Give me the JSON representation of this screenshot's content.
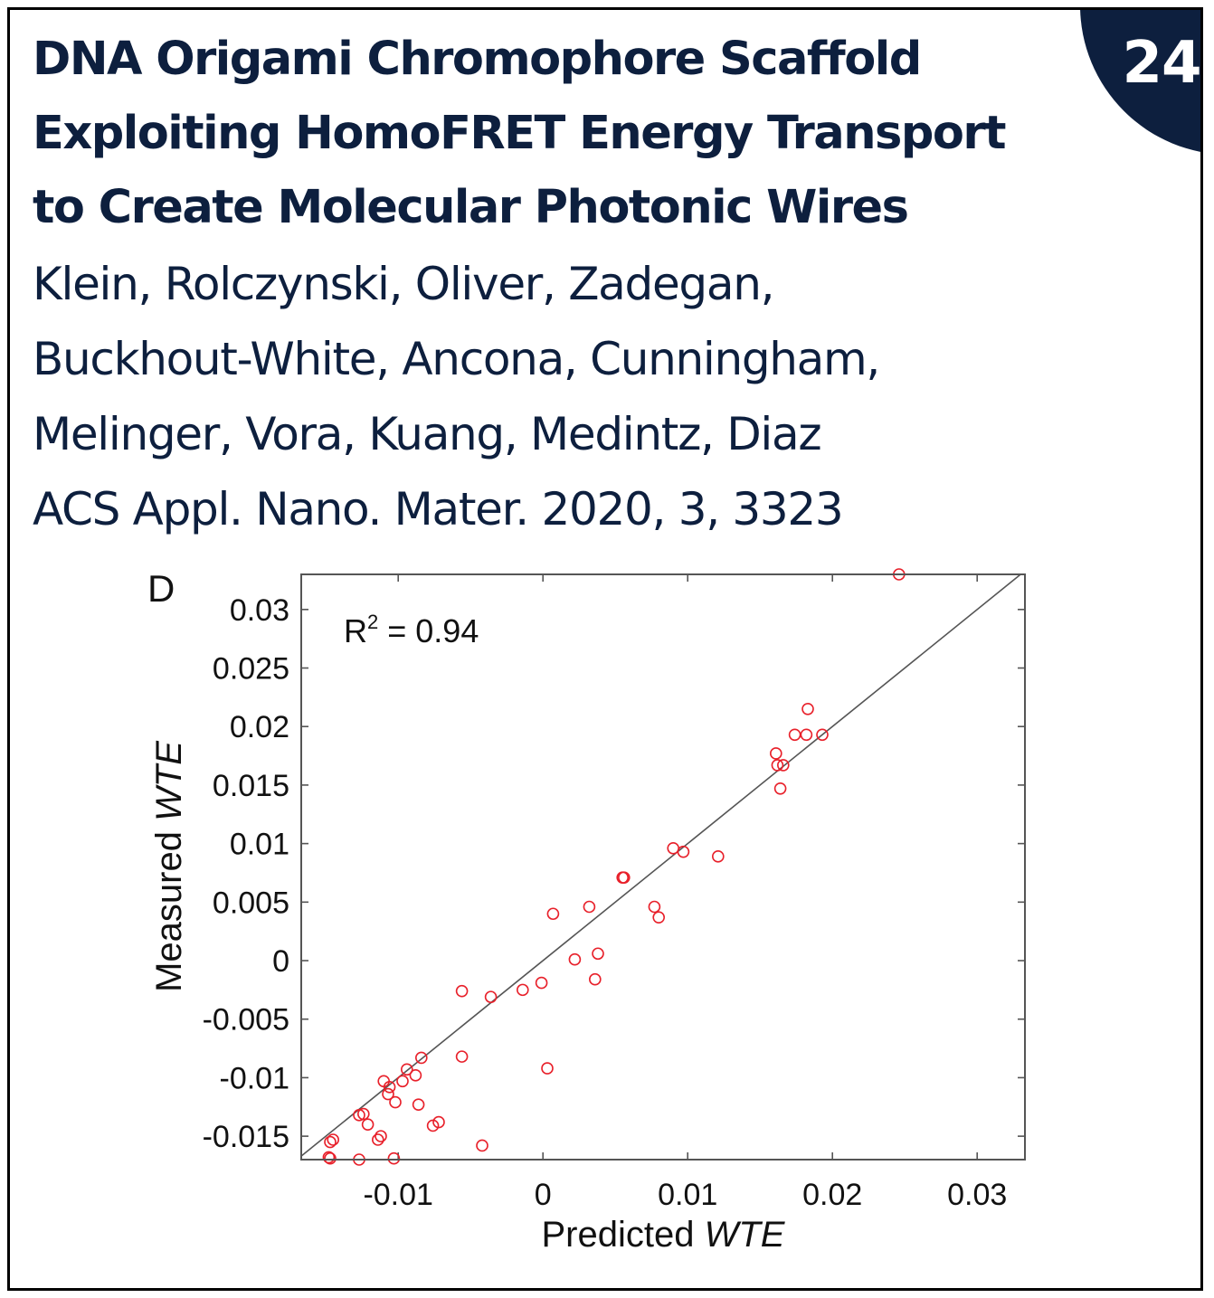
{
  "card": {
    "badge_number": "24",
    "title_lines": [
      "DNA Origami Chromophore Scaffold",
      "Exploiting HomoFRET Energy Transport",
      "to Create Molecular Photonic Wires"
    ],
    "author_lines": [
      "Klein, Rolczynski, Oliver, Zadegan,",
      "Buckhout-White, Ancona, Cunningham,",
      "Melinger, Vora, Kuang, Medintz, Diaz"
    ],
    "citation": "ACS Appl. Nano. Mater. 2020, 3, 3323"
  },
  "colors": {
    "navy": "#0d1f3e",
    "points": "#e8202a",
    "fit_line": "#555555",
    "frame": "#555555"
  },
  "chart_data": {
    "type": "scatter",
    "panel_label": "D",
    "annotation": {
      "prefix": "R",
      "superscript": "2",
      "suffix": " = 0.94"
    },
    "xlabel": {
      "plain": "Predicted ",
      "italic": "WTE"
    },
    "ylabel": {
      "plain": "Measured ",
      "italic": "WTE"
    },
    "xlim": [
      -0.0167,
      0.0333
    ],
    "ylim": [
      -0.017,
      0.033
    ],
    "xticks": [
      -0.01,
      0,
      0.01,
      0.02,
      0.03
    ],
    "xtick_labels": [
      "-0.01",
      "0",
      "0.01",
      "0.02",
      "0.03"
    ],
    "yticks": [
      -0.015,
      -0.01,
      -0.005,
      0,
      0.005,
      0.01,
      0.015,
      0.02,
      0.025,
      0.03
    ],
    "ytick_labels": [
      "-0.015",
      "-0.01",
      "-0.005",
      "0",
      "0.005",
      "0.01",
      "0.015",
      "0.02",
      "0.025",
      "0.03"
    ],
    "reference_line": {
      "type": "y=x"
    },
    "x": [
      0.0246,
      0.0183,
      0.0174,
      0.0182,
      0.0193,
      0.0161,
      0.0162,
      0.0166,
      0.0164,
      0.009,
      0.0097,
      0.0121,
      0.0055,
      0.0056,
      0.0007,
      0.0032,
      0.0077,
      0.008,
      0.0022,
      0.0038,
      0.0036,
      -0.0001,
      -0.0014,
      -0.0036,
      -0.0056,
      -0.0056,
      0.0003,
      -0.0084,
      -0.0094,
      -0.011,
      -0.0106,
      -0.0097,
      -0.0107,
      -0.0102,
      -0.0088,
      -0.0086,
      -0.0124,
      -0.0127,
      -0.0121,
      -0.0112,
      -0.0114,
      -0.0072,
      -0.0076,
      -0.0145,
      -0.0147,
      -0.0148,
      -0.0147,
      -0.0127,
      -0.0103,
      -0.0042
    ],
    "y": [
      0.033,
      0.0215,
      0.0193,
      0.0193,
      0.0193,
      0.0177,
      0.0167,
      0.0167,
      0.0147,
      0.0096,
      0.0093,
      0.0089,
      0.0071,
      0.0071,
      0.004,
      0.0046,
      0.0046,
      0.0037,
      0.0001,
      0.0006,
      -0.0016,
      -0.0019,
      -0.0025,
      -0.0031,
      -0.0026,
      -0.0082,
      -0.0092,
      -0.0083,
      -0.0093,
      -0.0103,
      -0.0108,
      -0.0103,
      -0.0114,
      -0.0121,
      -0.0098,
      -0.0123,
      -0.0131,
      -0.0132,
      -0.014,
      -0.015,
      -0.0153,
      -0.0138,
      -0.0141,
      -0.0153,
      -0.0155,
      -0.0168,
      -0.0169,
      -0.017,
      -0.0169,
      -0.0158
    ]
  }
}
